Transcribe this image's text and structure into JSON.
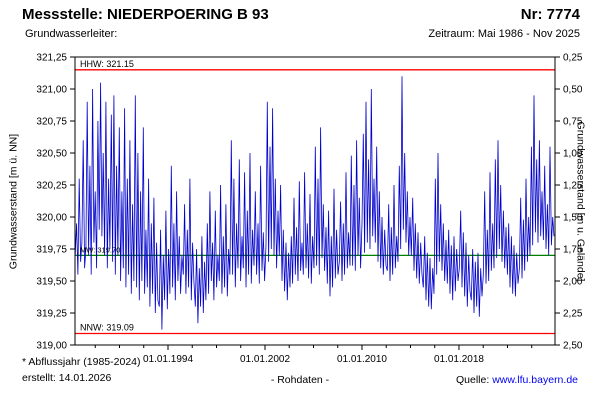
{
  "header": {
    "title": "Messstelle: NIEDERPOERING B 93",
    "number": "Nr: 7774"
  },
  "subheader": {
    "left": "Grundwasserleiter:",
    "right": "Zeitraum: Mai 1986 - Nov 2025"
  },
  "footer": {
    "note": "* Abflussjahr (1985-2024)",
    "created": "erstellt: 14.01.2026",
    "center": "- Rohdaten -",
    "source_label": "Quelle:",
    "source_link": "www.lfu.bayern.de"
  },
  "colors": {
    "series": "#0000cc",
    "reference": "#ff0000",
    "mean": "#008000",
    "link": "#0000ee"
  },
  "chart_data": {
    "type": "line",
    "title": "",
    "ylabel_left": "Grundwasserstand [m ü. NN]",
    "ylabel_right": "Grundwasserstand [m u. Gelände]",
    "y_left_min": 319.0,
    "y_left_max": 321.25,
    "x_min": 1986.33,
    "x_max": 2025.92,
    "grid": false,
    "legend": "none",
    "y_left_ticks": [
      {
        "v": 321.25,
        "label": "321,25"
      },
      {
        "v": 321.0,
        "label": "321,00"
      },
      {
        "v": 320.75,
        "label": "320,75"
      },
      {
        "v": 320.5,
        "label": "320,50"
      },
      {
        "v": 320.25,
        "label": "320,25"
      },
      {
        "v": 320.0,
        "label": "320,00"
      },
      {
        "v": 319.75,
        "label": "319,75"
      },
      {
        "v": 319.5,
        "label": "319,50"
      },
      {
        "v": 319.25,
        "label": "319,25"
      },
      {
        "v": 319.0,
        "label": "319,00"
      }
    ],
    "y_right_labels": [
      "0,25",
      "0,50",
      "0,75",
      "1,00",
      "1,25",
      "1,50",
      "1,75",
      "2,00",
      "2,25",
      "2,50"
    ],
    "x_ticks": [
      {
        "v": 1994,
        "label": "01.01.1994"
      },
      {
        "v": 2002,
        "label": "01.01.2002"
      },
      {
        "v": 2010,
        "label": "01.01.2010"
      },
      {
        "v": 2018,
        "label": "01.01.2018"
      }
    ],
    "x_minor_start": 1988,
    "x_minor_end": 2024,
    "x_minor_step": 2,
    "ref_lines": [
      {
        "name": "hhw",
        "label": "HHW: 321.15",
        "value": 321.15,
        "color": "#ff0000",
        "label_color": "#000000"
      },
      {
        "name": "mw",
        "label": "MW: 319.70",
        "value": 319.7,
        "color": "#008000",
        "label_color": "#006600"
      },
      {
        "name": "nnw",
        "label": "NNW: 319.09",
        "value": 319.09,
        "color": "#ff0000",
        "label_color": "#000000"
      }
    ],
    "series": {
      "name": "Grundwasserstand Rohdaten",
      "color": "#0000cc",
      "x0": 1986.35,
      "dx": 0.11,
      "values": [
        319.7,
        319.95,
        319.55,
        320.3,
        319.65,
        319.8,
        320.6,
        319.6,
        319.75,
        320.9,
        319.7,
        320.4,
        319.55,
        321.0,
        319.8,
        320.2,
        319.6,
        320.75,
        319.9,
        321.05,
        319.85,
        320.5,
        319.7,
        320.9,
        319.6,
        320.3,
        319.75,
        320.8,
        319.65,
        320.95,
        319.55,
        320.4,
        319.7,
        320.7,
        319.5,
        320.2,
        319.6,
        320.85,
        319.45,
        320.3,
        319.55,
        320.6,
        319.4,
        320.1,
        319.5,
        320.95,
        319.45,
        320.5,
        319.35,
        320.2,
        319.5,
        320.7,
        319.4,
        319.9,
        319.45,
        320.3,
        319.3,
        319.95,
        319.4,
        320.15,
        319.25,
        319.8,
        319.35,
        319.3,
        319.9,
        319.12,
        319.7,
        319.35,
        320.05,
        319.28,
        319.75,
        319.4,
        320.4,
        319.45,
        319.95,
        319.35,
        320.2,
        319.5,
        319.85,
        319.4,
        319.7,
        319.55,
        320.1,
        319.4,
        319.9,
        319.45,
        320.3,
        319.35,
        319.8,
        319.5,
        319.3,
        319.75,
        319.17,
        319.6,
        319.3,
        319.85,
        319.25,
        319.65,
        319.35,
        319.95,
        319.4,
        320.2,
        319.5,
        319.8,
        319.35,
        320.05,
        319.45,
        319.7,
        319.5,
        320.25,
        319.4,
        319.85,
        319.45,
        320.1,
        319.38,
        319.75,
        319.55,
        320.6,
        319.55,
        320.3,
        319.45,
        319.95,
        319.6,
        320.45,
        319.5,
        319.85,
        319.6,
        320.35,
        319.45,
        320.05,
        319.55,
        320.5,
        319.48,
        319.9,
        319.62,
        320.2,
        319.55,
        319.95,
        319.48,
        320.4,
        319.58,
        319.88,
        319.5,
        319.78,
        320.9,
        319.65,
        320.55,
        319.75,
        320.85,
        319.7,
        320.3,
        319.6,
        320.05,
        319.7,
        320.25,
        319.5,
        319.9,
        319.42,
        319.8,
        319.35,
        319.72,
        319.45,
        319.85,
        319.48,
        320.15,
        319.55,
        319.92,
        319.5,
        320.28,
        319.58,
        319.8,
        319.55,
        320.35,
        319.6,
        319.95,
        319.52,
        320.18,
        319.48,
        319.85,
        319.6,
        320.55,
        319.62,
        320.3,
        319.55,
        320.7,
        319.68,
        320.1,
        319.58,
        319.92,
        319.48,
        320.05,
        319.38,
        319.85,
        319.45,
        320.22,
        319.52,
        319.9,
        319.55,
        319.65,
        320.12,
        319.5,
        319.95,
        319.55,
        320.35,
        319.6,
        319.88,
        319.62,
        320.48,
        319.62,
        320.25,
        319.58,
        320.6,
        319.7,
        320.15,
        319.6,
        319.95,
        320.65,
        319.72,
        320.9,
        319.8,
        320.45,
        319.75,
        321.0,
        319.85,
        320.3,
        319.8,
        320.55,
        319.65,
        320.2,
        319.6,
        320.0,
        319.55,
        319.9,
        319.62,
        319.58,
        320.1,
        319.5,
        319.92,
        319.55,
        320.25,
        319.6,
        319.85,
        319.65,
        320.4,
        319.75,
        321.1,
        319.9,
        320.5,
        319.8,
        320.2,
        319.7,
        320.0,
        319.7,
        320.15,
        319.58,
        319.95,
        319.52,
        319.88,
        319.48,
        319.8,
        319.55,
        319.45,
        319.85,
        319.35,
        319.72,
        319.3,
        319.68,
        319.28,
        319.6,
        319.4,
        320.3,
        319.55,
        320.5,
        319.65,
        320.1,
        319.58,
        319.95,
        319.5,
        319.82,
        319.48,
        319.9,
        319.4,
        319.78,
        319.35,
        319.85,
        319.42,
        319.75,
        319.5,
        319.6,
        320.05,
        319.45,
        319.88,
        319.38,
        319.8,
        319.3,
        319.7,
        319.42,
        319.35,
        319.75,
        319.25,
        319.65,
        319.3,
        319.72,
        319.22,
        319.6,
        319.38,
        319.55,
        320.2,
        319.48,
        319.9,
        319.5,
        320.35,
        319.58,
        319.95,
        319.6,
        320.45,
        319.68,
        320.6,
        319.75,
        320.25,
        319.65,
        320.05,
        319.6,
        319.92,
        319.55,
        319.95,
        319.45,
        319.85,
        319.4,
        319.78,
        319.38,
        319.72,
        319.48,
        319.6,
        320.15,
        319.52,
        319.98,
        319.58,
        320.3,
        319.65,
        320.0,
        319.7,
        320.55,
        319.78,
        320.95,
        319.88,
        320.45,
        319.8,
        320.6,
        319.85,
        320.2,
        319.82,
        320.4,
        319.75,
        320.1,
        319.7,
        320.55,
        319.78,
        320.0,
        319.85
      ]
    }
  }
}
